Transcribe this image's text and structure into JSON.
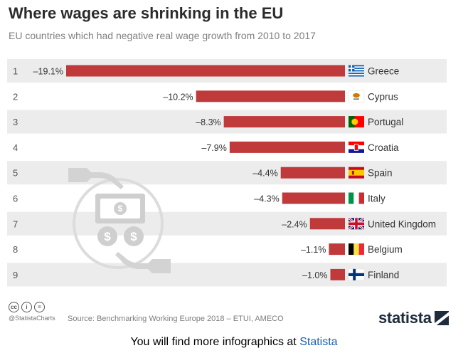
{
  "header": {
    "title": "Where wages are shrinking in the EU",
    "subtitle": "EU countries which had negative real wage growth from 2010 to 2017"
  },
  "chart_data": {
    "type": "bar",
    "orientation": "horizontal",
    "title": "Where wages are shrinking in the EU",
    "subtitle": "EU countries which had negative real wage growth from 2010 to 2017",
    "ranks": [
      "1",
      "2",
      "3",
      "4",
      "5",
      "6",
      "7",
      "8",
      "9"
    ],
    "categories": [
      "Greece",
      "Cyprus",
      "Portugal",
      "Croatia",
      "Spain",
      "Italy",
      "United Kingdom",
      "Belgium",
      "Finland"
    ],
    "values": [
      -19.1,
      -10.2,
      -8.3,
      -7.9,
      -4.4,
      -4.3,
      -2.4,
      -1.1,
      -1.0
    ],
    "value_labels": [
      "–19.1%",
      "–10.2%",
      "–8.3%",
      "–7.9%",
      "–4.4%",
      "–4.3%",
      "–2.4%",
      "–1.1%",
      "–1.0%"
    ],
    "xlim": [
      -19.1,
      0
    ],
    "unit": "%",
    "grid": false,
    "legend": "none",
    "bar_color": "#c0393b",
    "row_stripe_color": "#ececec"
  },
  "footer": {
    "cc_icons": [
      "cc",
      "i",
      "="
    ],
    "handle": "@StatistaCharts",
    "source": "Source: Benchmarking Working Europe 2018 – ETUI, AMECO",
    "brand": "statista",
    "more_text": "You will find more infographics at",
    "more_link": "Statista"
  },
  "colors": {
    "title": "#2b2b2b",
    "subtitle": "#808080",
    "link": "#1b5fb3",
    "brand": "#1f2c3c",
    "illustration": "#d3d3d3"
  }
}
